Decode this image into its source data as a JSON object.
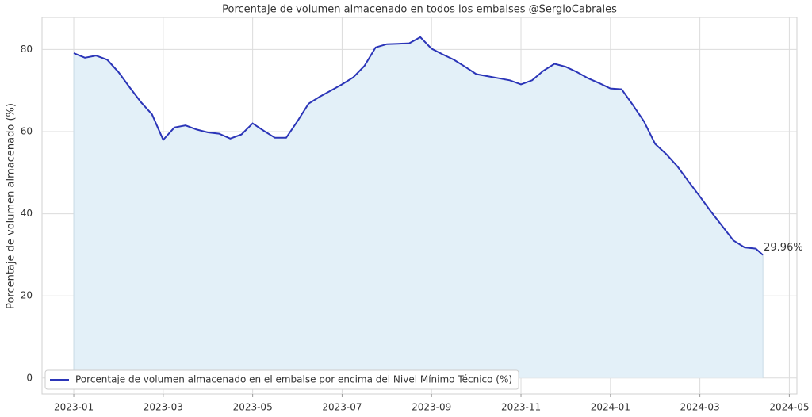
{
  "chart_data": {
    "type": "line",
    "title": "Porcentaje de volumen almacenado en todos los embalses @SergioCabrales",
    "y_label": "Porcentaje de volumen almacenado (%)",
    "x": [
      0,
      0.25,
      0.5,
      0.75,
      1.0,
      1.25,
      1.5,
      1.75,
      2.0,
      2.25,
      2.5,
      2.75,
      3.0,
      3.25,
      3.5,
      3.75,
      4.0,
      4.25,
      4.5,
      4.75,
      5.0,
      5.25,
      5.5,
      5.75,
      6.0,
      6.25,
      6.5,
      6.75,
      7.0,
      7.25,
      7.5,
      7.75,
      8.0,
      8.25,
      8.5,
      8.75,
      9.0,
      9.25,
      9.5,
      9.75,
      10.0,
      10.25,
      10.5,
      10.75,
      11.0,
      11.25,
      11.5,
      11.75,
      12.0,
      12.25,
      12.5,
      12.75,
      13.0,
      13.25,
      13.5,
      13.75,
      14.0,
      14.25,
      14.5,
      14.75,
      15.0,
      15.25,
      15.41
    ],
    "series": [
      {
        "name": "Porcentaje de volumen almacenado en el embalse por encima del Nivel Mínimo Técnico (%)",
        "color": "#2b35b8",
        "values": [
          79.1,
          78.0,
          78.5,
          77.5,
          74.5,
          70.8,
          67.2,
          64.2,
          58.0,
          61.0,
          61.5,
          60.5,
          59.8,
          59.5,
          58.3,
          59.3,
          62.0,
          60.2,
          58.5,
          58.5,
          62.5,
          66.8,
          68.5,
          70.0,
          71.5,
          73.2,
          76.0,
          80.5,
          81.3,
          81.4,
          81.5,
          83.0,
          80.2,
          78.8,
          77.5,
          75.8,
          74.0,
          73.5,
          73.0,
          72.5,
          71.5,
          72.5,
          74.8,
          76.5,
          75.8,
          74.5,
          73.0,
          71.8,
          70.5,
          70.3,
          66.5,
          62.5,
          57.0,
          54.5,
          51.5,
          47.8,
          44.2,
          40.5,
          37.0,
          33.5,
          31.8,
          31.5,
          29.96
        ]
      }
    ],
    "fill_color": "#e3f0f8",
    "annotation": "29.96%",
    "xlim": [
      -0.71,
      16.17
    ],
    "ylim": [
      -3.9,
      87.8
    ],
    "xticks": [
      {
        "value": 0,
        "label": "2023-01"
      },
      {
        "value": 2,
        "label": "2023-03"
      },
      {
        "value": 4,
        "label": "2023-05"
      },
      {
        "value": 6,
        "label": "2023-07"
      },
      {
        "value": 8,
        "label": "2023-09"
      },
      {
        "value": 10,
        "label": "2023-11"
      },
      {
        "value": 12,
        "label": "2024-01"
      },
      {
        "value": 14,
        "label": "2024-03"
      },
      {
        "value": 16,
        "label": "2024-05"
      }
    ],
    "yticks": [
      0,
      20,
      40,
      60,
      80
    ],
    "grid": true,
    "legend": "lower left"
  }
}
